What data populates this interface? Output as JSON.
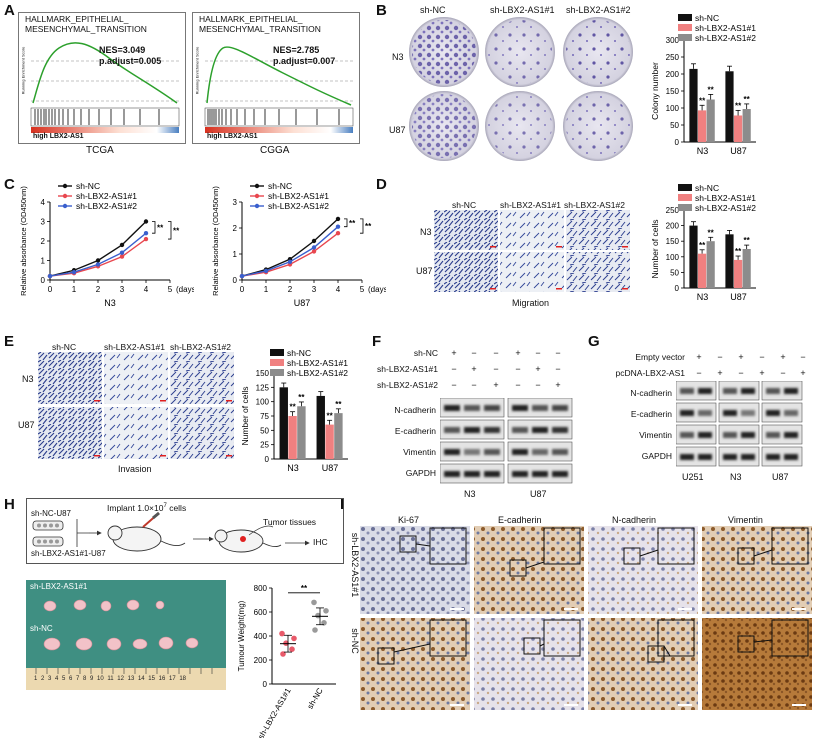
{
  "panels": {
    "A": {
      "label": "A",
      "gsea": [
        {
          "title1": "HALLMARK_EPITHELIAL_",
          "title2": "MESENCHYMAL_TRANSITION",
          "nes": "NES=3.049",
          "padj": "p.adjust=0.005",
          "bottom": "high LBX2-AS1",
          "caption": "TCGA",
          "yaxis": "Running Enrichment Score"
        },
        {
          "title1": "HALLMARK_EPITHELIAL_",
          "title2": "MESENCHYMAL_TRANSITION",
          "nes": "NES=2.785",
          "padj": "p.adjust=0.007",
          "bottom": "high LBX2-AS1",
          "caption": "CGGA",
          "yaxis": "Running Enrichment Score"
        }
      ]
    },
    "B": {
      "label": "B",
      "cols": [
        "sh-NC",
        "sh-LBX2-AS1#1",
        "sh-LBX2-AS1#2"
      ],
      "rows": [
        "N3",
        "U87"
      ],
      "sig": "**"
    },
    "C": {
      "label": "C",
      "xunit": "(days)",
      "sig": "**"
    },
    "D": {
      "label": "D",
      "cols": [
        "sh-NC",
        "sh-LBX2-AS1#1",
        "sh-LBX2-AS1#2"
      ],
      "rows": [
        "N3",
        "U87"
      ],
      "caption": "Migration"
    },
    "E": {
      "label": "E",
      "cols": [
        "sh-NC",
        "sh-LBX2-AS1#1",
        "sh-LBX2-AS1#2"
      ],
      "rows": [
        "N3",
        "U87"
      ],
      "caption": "Invasion"
    },
    "F": {
      "label": "F",
      "conds": [
        "sh-NC",
        "sh-LBX2-AS1#1",
        "sh-LBX2-AS1#2"
      ],
      "plus": "+",
      "minus": "−",
      "proteins": [
        "N-cadherin",
        "E-cadherin",
        "Vimentin",
        "GAPDH"
      ],
      "cells": [
        "N3",
        "U87"
      ]
    },
    "G": {
      "label": "G",
      "conds": [
        "Empty vector",
        "pcDNA-LBX2-AS1"
      ],
      "plus": "+",
      "minus": "−",
      "proteins": [
        "N-cadherin",
        "E-cadherin",
        "Vimentin",
        "GAPDH"
      ],
      "cells": [
        "U251",
        "N3",
        "U87"
      ]
    },
    "H": {
      "label": "H",
      "group1": "sh-NC-U87",
      "group2": "sh-LBX2-AS1#1-U87",
      "implant": "Implant 1.0×10",
      "implant_exp": "7",
      "implant_unit": " cells",
      "tumor": "Tumor tissues",
      "ihc": "IHC",
      "photo_top": "sh-LBX2-AS1#1",
      "photo_bottom": "sh-NC",
      "ruler": "1 2 3 4 5 6 7 8 9 10 11 12 13 14 15 16 17 18",
      "sig": "**"
    },
    "I": {
      "label": "I",
      "stains": [
        "Ki-67",
        "E-cadherin",
        "N-cadherin",
        "Vimentin"
      ],
      "rows": [
        "sh-LBX2-AS1#1",
        "sh-NC"
      ]
    }
  },
  "colors": {
    "nc": "#111111",
    "sh1": "#f08080",
    "sh2": "#8c8c8c",
    "gsea": "#2ca02c",
    "line_nc": "#111111",
    "line_sh1": "#e8474f",
    "line_sh2": "#3a5fcd"
  },
  "chart_data": [
    {
      "id": "B-bar",
      "type": "bar",
      "ylabel": "Colony number",
      "ylim": [
        0,
        300
      ],
      "yticks": [
        0,
        50,
        100,
        150,
        200,
        250,
        300
      ],
      "categories": [
        "N3",
        "U87"
      ],
      "series": [
        {
          "name": "sh-NC",
          "values": [
            215,
            208
          ]
        },
        {
          "name": "sh-LBX2-AS1#1",
          "values": [
            93,
            78
          ]
        },
        {
          "name": "sh-LBX2-AS1#2",
          "values": [
            125,
            97
          ]
        }
      ]
    },
    {
      "id": "C-N3",
      "type": "line",
      "title": "N3",
      "ylabel": "Relative absorbance (OD450nm)",
      "xlabel": "(days)",
      "x": [
        0,
        1,
        2,
        3,
        4
      ],
      "ylim": [
        0,
        4
      ],
      "yticks": [
        0,
        1,
        2,
        3,
        4
      ],
      "xticks": [
        0,
        1,
        2,
        3,
        4,
        5
      ],
      "series": [
        {
          "name": "sh-NC",
          "values": [
            0.2,
            0.5,
            1.0,
            1.8,
            3.0
          ]
        },
        {
          "name": "sh-LBX2-AS1#1",
          "values": [
            0.2,
            0.35,
            0.7,
            1.2,
            2.1
          ]
        },
        {
          "name": "sh-LBX2-AS1#2",
          "values": [
            0.2,
            0.4,
            0.8,
            1.4,
            2.4
          ]
        }
      ]
    },
    {
      "id": "C-U87",
      "type": "line",
      "title": "U87",
      "ylabel": "Relative absorbance (OD450nm)",
      "xlabel": "(days)",
      "x": [
        0,
        1,
        2,
        3,
        4
      ],
      "ylim": [
        0,
        3
      ],
      "yticks": [
        0,
        1,
        2,
        3
      ],
      "xticks": [
        0,
        1,
        2,
        3,
        4,
        5
      ],
      "series": [
        {
          "name": "sh-NC",
          "values": [
            0.15,
            0.4,
            0.8,
            1.5,
            2.35
          ]
        },
        {
          "name": "sh-LBX2-AS1#1",
          "values": [
            0.15,
            0.3,
            0.6,
            1.1,
            1.8
          ]
        },
        {
          "name": "sh-LBX2-AS1#2",
          "values": [
            0.15,
            0.35,
            0.7,
            1.25,
            2.05
          ]
        }
      ]
    },
    {
      "id": "D-bar",
      "type": "bar",
      "ylabel": "Number of cells",
      "ylim": [
        0,
        250
      ],
      "yticks": [
        0,
        50,
        100,
        150,
        200,
        250
      ],
      "categories": [
        "N3",
        "U87"
      ],
      "series": [
        {
          "name": "sh-NC",
          "values": [
            200,
            172
          ]
        },
        {
          "name": "sh-LBX2-AS1#1",
          "values": [
            110,
            90
          ]
        },
        {
          "name": "sh-LBX2-AS1#2",
          "values": [
            150,
            125
          ]
        }
      ]
    },
    {
      "id": "E-bar",
      "type": "bar",
      "ylabel": "Number of cells",
      "ylim": [
        0,
        150
      ],
      "yticks": [
        0,
        25,
        50,
        75,
        100,
        125,
        150
      ],
      "categories": [
        "N3",
        "U87"
      ],
      "series": [
        {
          "name": "sh-NC",
          "values": [
            125,
            110
          ]
        },
        {
          "name": "sh-LBX2-AS1#1",
          "values": [
            75,
            60
          ]
        },
        {
          "name": "sh-LBX2-AS1#2",
          "values": [
            92,
            80
          ]
        }
      ]
    },
    {
      "id": "H-scatter",
      "type": "scatter",
      "ylabel": "Tumour Weight(mg)",
      "ylim": [
        0,
        800
      ],
      "yticks": [
        0,
        200,
        400,
        600,
        800
      ],
      "categories": [
        "sh-LBX2-AS1#1",
        "sh-NC"
      ],
      "series": [
        {
          "name": "sh-LBX2-AS1#1",
          "values": [
            250,
            290,
            340,
            380,
            420
          ]
        },
        {
          "name": "sh-NC",
          "values": [
            450,
            510,
            570,
            610,
            680
          ]
        }
      ]
    }
  ]
}
